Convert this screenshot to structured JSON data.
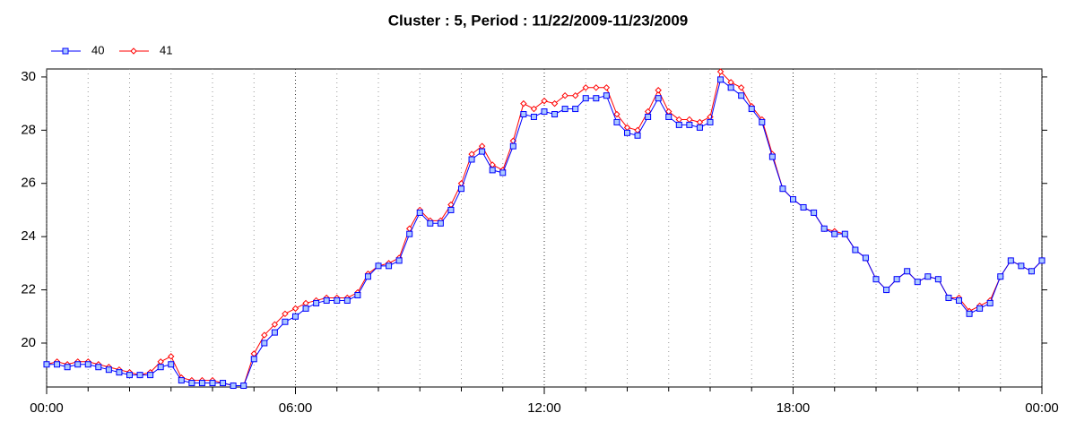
{
  "chart_data": {
    "type": "line",
    "title": "Cluster : 5, Period : 11/22/2009-11/23/2009",
    "x": [
      0,
      0.25,
      0.5,
      0.75,
      1,
      1.25,
      1.5,
      1.75,
      2,
      2.25,
      2.5,
      2.75,
      3,
      3.25,
      3.5,
      3.75,
      4,
      4.25,
      4.5,
      4.75,
      5,
      5.25,
      5.5,
      5.75,
      6,
      6.25,
      6.5,
      6.75,
      7,
      7.25,
      7.5,
      7.75,
      8,
      8.25,
      8.5,
      8.75,
      9,
      9.25,
      9.5,
      9.75,
      10,
      10.25,
      10.5,
      10.75,
      11,
      11.25,
      11.5,
      11.75,
      12,
      12.25,
      12.5,
      12.75,
      13,
      13.25,
      13.5,
      13.75,
      14,
      14.25,
      14.5,
      14.75,
      15,
      15.25,
      15.5,
      15.75,
      16,
      16.25,
      16.5,
      16.75,
      17,
      17.25,
      17.5,
      17.75,
      18,
      18.25,
      18.5,
      18.75,
      19,
      19.25,
      19.5,
      19.75,
      20,
      20.25,
      20.5,
      20.75,
      21,
      21.25,
      21.5,
      21.75,
      22,
      22.25,
      22.5,
      22.75,
      23,
      23.25,
      23.5,
      23.75,
      24
    ],
    "series": [
      {
        "name": "40",
        "color": "#0000ff",
        "marker": "square",
        "values": [
          19.2,
          19.2,
          19.1,
          19.2,
          19.2,
          19.1,
          19.0,
          18.9,
          18.8,
          18.8,
          18.8,
          19.1,
          19.2,
          18.6,
          18.5,
          18.5,
          18.5,
          18.5,
          18.4,
          18.4,
          19.4,
          20.0,
          20.4,
          20.8,
          21.0,
          21.3,
          21.5,
          21.6,
          21.6,
          21.6,
          21.8,
          22.5,
          22.9,
          22.9,
          23.1,
          24.1,
          24.9,
          24.5,
          24.5,
          25.0,
          25.8,
          26.9,
          27.2,
          26.5,
          26.4,
          27.4,
          28.6,
          28.5,
          28.7,
          28.6,
          28.8,
          28.8,
          29.2,
          29.2,
          29.3,
          28.3,
          27.9,
          27.8,
          28.5,
          29.2,
          28.5,
          28.2,
          28.2,
          28.1,
          28.3,
          29.9,
          29.6,
          29.3,
          28.8,
          28.3,
          27.0,
          25.8,
          25.4,
          25.1,
          24.9,
          24.3,
          24.1,
          24.1,
          23.5,
          23.2,
          22.4,
          22.0,
          22.4,
          22.7,
          22.3,
          22.5,
          22.4,
          21.7,
          21.6,
          21.1,
          21.3,
          21.5,
          22.5,
          23.1,
          22.9,
          22.7,
          23.1
        ]
      },
      {
        "name": "41",
        "color": "#ff0000",
        "marker": "diamond",
        "values": [
          19.2,
          19.3,
          19.2,
          19.3,
          19.3,
          19.2,
          19.1,
          19.0,
          18.9,
          18.8,
          18.9,
          19.3,
          19.5,
          18.7,
          18.6,
          18.6,
          18.6,
          18.5,
          18.4,
          18.4,
          19.6,
          20.3,
          20.7,
          21.1,
          21.3,
          21.5,
          21.6,
          21.7,
          21.7,
          21.7,
          21.9,
          22.6,
          22.9,
          23.0,
          23.2,
          24.3,
          25.0,
          24.6,
          24.6,
          25.2,
          26.0,
          27.1,
          27.4,
          26.7,
          26.5,
          27.6,
          29.0,
          28.8,
          29.1,
          29.0,
          29.3,
          29.3,
          29.6,
          29.6,
          29.6,
          28.6,
          28.1,
          28.0,
          28.7,
          29.5,
          28.7,
          28.4,
          28.4,
          28.3,
          28.5,
          30.2,
          29.8,
          29.6,
          28.9,
          28.4,
          27.1,
          25.8,
          25.4,
          25.1,
          24.9,
          24.3,
          24.2,
          24.1,
          23.5,
          23.2,
          22.4,
          22.0,
          22.4,
          22.7,
          22.3,
          22.5,
          22.4,
          21.7,
          21.7,
          21.2,
          21.4,
          21.6,
          22.5,
          23.1,
          22.9,
          22.7,
          23.1
        ]
      }
    ],
    "xlim": [
      0,
      24
    ],
    "xticks": [
      {
        "value": 0,
        "label": "00:00"
      },
      {
        "value": 6,
        "label": "06:00"
      },
      {
        "value": 12,
        "label": "12:00"
      },
      {
        "value": 18,
        "label": "18:00"
      },
      {
        "value": 24,
        "label": "00:00"
      }
    ],
    "xminorticks": [
      1,
      2,
      3,
      4,
      5,
      7,
      8,
      9,
      10,
      11,
      13,
      14,
      15,
      16,
      17,
      19,
      20,
      21,
      22,
      23
    ],
    "ylim": [
      18.35,
      30.3
    ],
    "yticks": [
      20,
      22,
      24,
      26,
      28,
      30
    ],
    "grid": true,
    "legend": "top-left"
  }
}
